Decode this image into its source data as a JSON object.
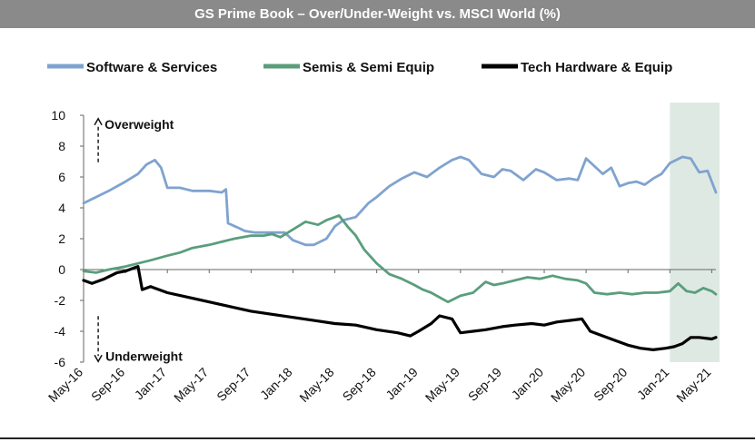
{
  "chart_data": {
    "type": "line",
    "title": "GS Prime Book – Over/Under-Weight vs. MSCI World (%)",
    "xlabel": "",
    "ylabel": "",
    "ylim": [
      -6,
      10
    ],
    "yticks": [
      10,
      8,
      6,
      4,
      2,
      0,
      -2,
      -4,
      -6
    ],
    "tick_labels": [
      "May-16",
      "Sep-16",
      "Jan-17",
      "May-17",
      "Sep-17",
      "Jan-18",
      "May-18",
      "Sep-18",
      "Jan-19",
      "May-19",
      "Sep-19",
      "Jan-20",
      "May-20",
      "Sep-20",
      "Jan-21",
      "May-21"
    ],
    "x_range": [
      0,
      15.1
    ],
    "shaded_region": {
      "from": 14.0,
      "to": 15.1,
      "color": "#dfe9e3"
    },
    "annotations": [
      {
        "text": "Overweight",
        "x": 1.0,
        "y": 9.6,
        "arrow": "up"
      },
      {
        "text": "Underweight",
        "x": 1.0,
        "y": -5.9,
        "arrow": "down"
      }
    ],
    "legend_position": "top",
    "series": [
      {
        "name": "Software & Services",
        "color": "#7fa3cf",
        "points": [
          [
            0,
            4.3
          ],
          [
            0.3,
            4.7
          ],
          [
            0.6,
            5.1
          ],
          [
            1.0,
            5.7
          ],
          [
            1.3,
            6.2
          ],
          [
            1.5,
            6.8
          ],
          [
            1.7,
            7.1
          ],
          [
            1.85,
            6.6
          ],
          [
            2.0,
            5.3
          ],
          [
            2.3,
            5.3
          ],
          [
            2.6,
            5.1
          ],
          [
            3.0,
            5.1
          ],
          [
            3.3,
            5.0
          ],
          [
            3.4,
            5.2
          ],
          [
            3.45,
            3.0
          ],
          [
            3.7,
            2.7
          ],
          [
            3.85,
            2.5
          ],
          [
            4.1,
            2.4
          ],
          [
            4.5,
            2.4
          ],
          [
            4.8,
            2.4
          ],
          [
            5.0,
            1.9
          ],
          [
            5.3,
            1.6
          ],
          [
            5.5,
            1.6
          ],
          [
            5.8,
            2.0
          ],
          [
            6.0,
            2.8
          ],
          [
            6.2,
            3.2
          ],
          [
            6.5,
            3.4
          ],
          [
            6.8,
            4.3
          ],
          [
            7.0,
            4.7
          ],
          [
            7.3,
            5.4
          ],
          [
            7.6,
            5.9
          ],
          [
            7.9,
            6.3
          ],
          [
            8.2,
            6.0
          ],
          [
            8.5,
            6.6
          ],
          [
            8.8,
            7.1
          ],
          [
            9.0,
            7.3
          ],
          [
            9.2,
            7.1
          ],
          [
            9.5,
            6.2
          ],
          [
            9.8,
            6.0
          ],
          [
            10.0,
            6.5
          ],
          [
            10.2,
            6.4
          ],
          [
            10.5,
            5.8
          ],
          [
            10.8,
            6.5
          ],
          [
            11.0,
            6.3
          ],
          [
            11.3,
            5.8
          ],
          [
            11.6,
            5.9
          ],
          [
            11.8,
            5.8
          ],
          [
            12.0,
            7.2
          ],
          [
            12.2,
            6.7
          ],
          [
            12.4,
            6.2
          ],
          [
            12.6,
            6.6
          ],
          [
            12.8,
            5.4
          ],
          [
            13.0,
            5.6
          ],
          [
            13.2,
            5.7
          ],
          [
            13.4,
            5.5
          ],
          [
            13.6,
            5.9
          ],
          [
            13.8,
            6.2
          ],
          [
            14.0,
            6.9
          ],
          [
            14.3,
            7.3
          ],
          [
            14.5,
            7.2
          ],
          [
            14.7,
            6.3
          ],
          [
            14.9,
            6.4
          ],
          [
            15.1,
            5.0
          ]
        ]
      },
      {
        "name": "Semis & Semi Equip",
        "color": "#5a9e7c",
        "points": [
          [
            0,
            -0.1
          ],
          [
            0.3,
            -0.2
          ],
          [
            0.6,
            0.0
          ],
          [
            1.0,
            0.2
          ],
          [
            1.3,
            0.4
          ],
          [
            1.6,
            0.6
          ],
          [
            2.0,
            0.9
          ],
          [
            2.3,
            1.1
          ],
          [
            2.6,
            1.4
          ],
          [
            3.0,
            1.6
          ],
          [
            3.3,
            1.8
          ],
          [
            3.6,
            2.0
          ],
          [
            4.0,
            2.2
          ],
          [
            4.3,
            2.2
          ],
          [
            4.5,
            2.3
          ],
          [
            4.7,
            2.1
          ],
          [
            5.0,
            2.6
          ],
          [
            5.3,
            3.1
          ],
          [
            5.6,
            2.9
          ],
          [
            5.8,
            3.2
          ],
          [
            6.0,
            3.4
          ],
          [
            6.1,
            3.5
          ],
          [
            6.3,
            2.8
          ],
          [
            6.5,
            2.2
          ],
          [
            6.7,
            1.3
          ],
          [
            7.0,
            0.4
          ],
          [
            7.3,
            -0.3
          ],
          [
            7.6,
            -0.6
          ],
          [
            7.9,
            -1.0
          ],
          [
            8.1,
            -1.3
          ],
          [
            8.3,
            -1.5
          ],
          [
            8.5,
            -1.8
          ],
          [
            8.7,
            -2.1
          ],
          [
            9.0,
            -1.7
          ],
          [
            9.3,
            -1.5
          ],
          [
            9.6,
            -0.8
          ],
          [
            9.8,
            -1.0
          ],
          [
            10.0,
            -0.9
          ],
          [
            10.3,
            -0.7
          ],
          [
            10.6,
            -0.5
          ],
          [
            10.9,
            -0.6
          ],
          [
            11.2,
            -0.4
          ],
          [
            11.5,
            -0.6
          ],
          [
            11.8,
            -0.7
          ],
          [
            12.0,
            -0.9
          ],
          [
            12.2,
            -1.5
          ],
          [
            12.5,
            -1.6
          ],
          [
            12.8,
            -1.5
          ],
          [
            13.1,
            -1.6
          ],
          [
            13.4,
            -1.5
          ],
          [
            13.7,
            -1.5
          ],
          [
            14.0,
            -1.4
          ],
          [
            14.2,
            -0.9
          ],
          [
            14.4,
            -1.4
          ],
          [
            14.6,
            -1.5
          ],
          [
            14.8,
            -1.2
          ],
          [
            15.0,
            -1.4
          ],
          [
            15.1,
            -1.6
          ]
        ]
      },
      {
        "name": "Tech Hardware & Equip",
        "color": "#000000",
        "points": [
          [
            0,
            -0.7
          ],
          [
            0.2,
            -0.9
          ],
          [
            0.5,
            -0.6
          ],
          [
            0.8,
            -0.2
          ],
          [
            1.0,
            -0.1
          ],
          [
            1.2,
            0.1
          ],
          [
            1.3,
            0.2
          ],
          [
            1.4,
            -1.3
          ],
          [
            1.6,
            -1.1
          ],
          [
            2.0,
            -1.5
          ],
          [
            2.5,
            -1.8
          ],
          [
            3.0,
            -2.1
          ],
          [
            3.5,
            -2.4
          ],
          [
            4.0,
            -2.7
          ],
          [
            4.5,
            -2.9
          ],
          [
            5.0,
            -3.1
          ],
          [
            5.5,
            -3.3
          ],
          [
            6.0,
            -3.5
          ],
          [
            6.5,
            -3.6
          ],
          [
            7.0,
            -3.9
          ],
          [
            7.5,
            -4.1
          ],
          [
            7.8,
            -4.3
          ],
          [
            8.0,
            -4.0
          ],
          [
            8.3,
            -3.5
          ],
          [
            8.5,
            -3.0
          ],
          [
            8.8,
            -3.2
          ],
          [
            9.0,
            -4.1
          ],
          [
            9.3,
            -4.0
          ],
          [
            9.6,
            -3.9
          ],
          [
            10.0,
            -3.7
          ],
          [
            10.3,
            -3.6
          ],
          [
            10.7,
            -3.5
          ],
          [
            11.0,
            -3.6
          ],
          [
            11.3,
            -3.4
          ],
          [
            11.6,
            -3.3
          ],
          [
            11.9,
            -3.2
          ],
          [
            12.1,
            -4.0
          ],
          [
            12.4,
            -4.3
          ],
          [
            12.7,
            -4.6
          ],
          [
            13.0,
            -4.9
          ],
          [
            13.3,
            -5.1
          ],
          [
            13.6,
            -5.2
          ],
          [
            13.9,
            -5.1
          ],
          [
            14.1,
            -5.0
          ],
          [
            14.3,
            -4.8
          ],
          [
            14.5,
            -4.4
          ],
          [
            14.7,
            -4.4
          ],
          [
            15.0,
            -4.5
          ],
          [
            15.1,
            -4.4
          ]
        ]
      }
    ]
  }
}
